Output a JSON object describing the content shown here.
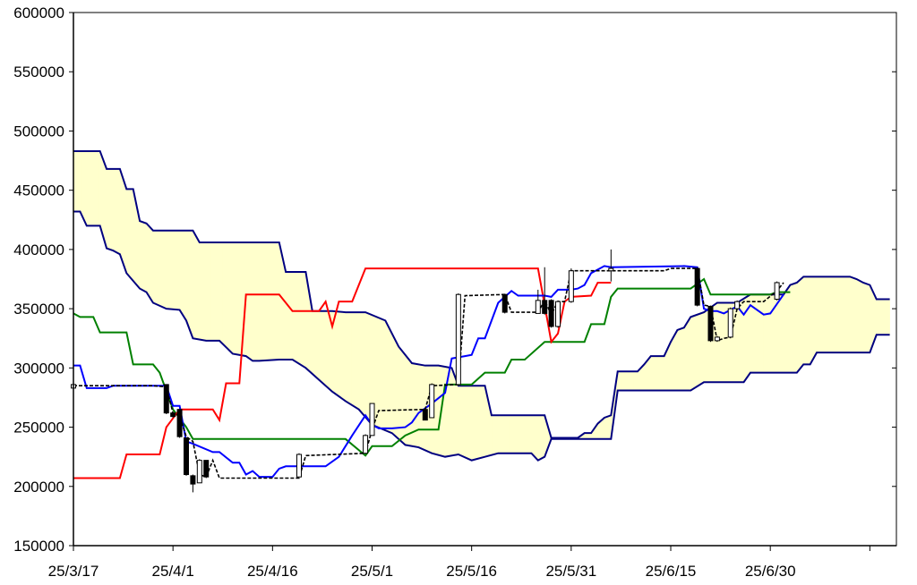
{
  "chart_data": {
    "type": "candlestick-ichimoku",
    "xlabel": "",
    "ylabel": "",
    "grid": false,
    "legend": "none",
    "xlim": [
      "25/3/17",
      "25/7/18"
    ],
    "ylim": [
      150000,
      600000
    ],
    "y_ticks": [
      150000,
      200000,
      250000,
      300000,
      350000,
      400000,
      450000,
      500000,
      550000,
      600000
    ],
    "x_ticks": [
      "25/3/17",
      "25/4/1",
      "25/4/16",
      "25/5/1",
      "25/5/16",
      "25/5/31",
      "25/6/15",
      "25/6/30"
    ],
    "colors": {
      "tenkan": "#0000ff",
      "kijun": "#ff0000",
      "chikou": "#008000",
      "span_lines": "#000080",
      "cloud_bull": "#ffffcc",
      "cloud_bear": "#99dddd",
      "candle": "#000000",
      "close_line": "#000000"
    },
    "span_a": [
      [
        "25/3/17",
        483000
      ],
      [
        "25/3/21",
        483000
      ],
      [
        "25/3/22",
        468000
      ],
      [
        "25/3/24",
        468000
      ],
      [
        "25/3/25",
        451000
      ],
      [
        "25/3/26",
        451000
      ],
      [
        "25/3/27",
        424000
      ],
      [
        "25/3/28",
        422000
      ],
      [
        "25/3/29",
        416000
      ],
      [
        "25/4/4",
        416000
      ],
      [
        "25/4/5",
        406000
      ],
      [
        "25/4/17",
        406000
      ],
      [
        "25/4/18",
        381000
      ],
      [
        "25/4/21",
        381000
      ],
      [
        "25/4/22",
        348000
      ],
      [
        "25/4/25",
        348000
      ],
      [
        "25/4/27",
        347000
      ],
      [
        "25/4/30",
        347000
      ],
      [
        "25/5/3",
        340000
      ],
      [
        "25/5/5",
        318000
      ],
      [
        "25/5/7",
        304000
      ],
      [
        "25/5/9",
        302000
      ],
      [
        "25/5/11",
        302000
      ],
      [
        "25/5/13",
        300000
      ],
      [
        "25/5/14",
        285000
      ],
      [
        "25/5/18",
        285000
      ],
      [
        "25/5/19",
        260000
      ],
      [
        "25/5/23",
        260000
      ],
      [
        "25/5/24",
        260000
      ],
      [
        "25/5/27",
        260000
      ],
      [
        "25/5/28",
        241000
      ],
      [
        "25/6/1",
        241000
      ],
      [
        "25/6/2",
        245000
      ],
      [
        "25/6/3",
        245000
      ],
      [
        "25/6/4",
        253000
      ],
      [
        "25/6/5",
        258000
      ],
      [
        "25/6/6",
        260000
      ],
      [
        "25/6/7",
        297000
      ],
      [
        "25/6/10",
        297000
      ],
      [
        "25/6/11",
        303000
      ],
      [
        "25/6/12",
        310000
      ],
      [
        "25/6/14",
        310000
      ],
      [
        "25/6/15",
        322000
      ],
      [
        "25/6/16",
        332000
      ],
      [
        "25/6/17",
        334000
      ],
      [
        "25/6/18",
        343000
      ],
      [
        "25/6/20",
        347000
      ],
      [
        "25/6/22",
        355000
      ],
      [
        "25/6/24",
        355000
      ],
      [
        "25/6/25",
        355000
      ],
      [
        "25/6/27",
        362000
      ],
      [
        "25/7/2",
        362000
      ],
      [
        "25/7/3",
        370000
      ],
      [
        "25/7/4",
        372000
      ],
      [
        "25/7/5",
        377000
      ],
      [
        "25/7/12",
        377000
      ],
      [
        "25/7/13",
        375000
      ],
      [
        "25/7/14",
        372000
      ],
      [
        "25/7/15",
        370000
      ],
      [
        "25/7/16",
        358000
      ],
      [
        "25/7/18",
        358000
      ]
    ],
    "span_b": [
      [
        "25/3/17",
        432000
      ],
      [
        "25/3/18",
        432000
      ],
      [
        "25/3/19",
        420000
      ],
      [
        "25/3/21",
        420000
      ],
      [
        "25/3/22",
        401000
      ],
      [
        "25/3/23",
        399000
      ],
      [
        "25/3/24",
        396000
      ],
      [
        "25/3/25",
        380000
      ],
      [
        "25/3/27",
        367000
      ],
      [
        "25/3/28",
        364000
      ],
      [
        "25/3/29",
        355000
      ],
      [
        "25/3/31",
        350000
      ],
      [
        "25/4/2",
        349000
      ],
      [
        "25/4/3",
        340000
      ],
      [
        "25/4/4",
        325000
      ],
      [
        "25/4/6",
        323000
      ],
      [
        "25/4/8",
        323000
      ],
      [
        "25/4/10",
        312000
      ],
      [
        "25/4/12",
        310000
      ],
      [
        "25/4/13",
        306000
      ],
      [
        "25/4/14",
        306000
      ],
      [
        "25/4/17",
        307000
      ],
      [
        "25/4/19",
        307000
      ],
      [
        "25/4/21",
        300000
      ],
      [
        "25/4/23",
        290000
      ],
      [
        "25/4/25",
        280000
      ],
      [
        "25/4/27",
        272000
      ],
      [
        "25/4/29",
        265000
      ],
      [
        "25/5/1",
        252000
      ],
      [
        "25/5/4",
        245000
      ],
      [
        "25/5/6",
        235000
      ],
      [
        "25/5/8",
        233000
      ],
      [
        "25/5/10",
        228000
      ],
      [
        "25/5/12",
        225000
      ],
      [
        "25/5/14",
        227000
      ],
      [
        "25/5/16",
        222000
      ],
      [
        "25/5/18",
        225000
      ],
      [
        "25/5/20",
        228000
      ],
      [
        "25/5/24",
        228000
      ],
      [
        "25/5/25",
        228000
      ],
      [
        "25/5/26",
        222000
      ],
      [
        "25/5/27",
        225000
      ],
      [
        "25/5/28",
        240000
      ],
      [
        "25/6/6",
        240000
      ],
      [
        "25/6/7",
        281000
      ],
      [
        "25/6/18",
        281000
      ],
      [
        "25/6/20",
        288000
      ],
      [
        "25/6/26",
        288000
      ],
      [
        "25/6/27",
        296000
      ],
      [
        "25/7/4",
        296000
      ],
      [
        "25/7/5",
        303000
      ],
      [
        "25/7/6",
        303000
      ],
      [
        "25/7/7",
        313000
      ],
      [
        "25/7/15",
        313000
      ],
      [
        "25/7/16",
        328000
      ],
      [
        "25/7/18",
        328000
      ]
    ],
    "tenkan": [
      [
        "25/3/17",
        302000
      ],
      [
        "25/3/18",
        302000
      ],
      [
        "25/3/19",
        283000
      ],
      [
        "25/3/22",
        283000
      ],
      [
        "25/3/23",
        285000
      ],
      [
        "25/3/31",
        285000
      ],
      [
        "25/4/1",
        268000
      ],
      [
        "25/4/2",
        268000
      ],
      [
        "25/4/3",
        238000
      ],
      [
        "25/4/4",
        236000
      ],
      [
        "25/4/7",
        229000
      ],
      [
        "25/4/8",
        229000
      ],
      [
        "25/4/10",
        220000
      ],
      [
        "25/4/11",
        220000
      ],
      [
        "25/4/12",
        210000
      ],
      [
        "25/4/13",
        213000
      ],
      [
        "25/4/14",
        208000
      ],
      [
        "25/4/16",
        208000
      ],
      [
        "25/4/17",
        215000
      ],
      [
        "25/4/18",
        217000
      ],
      [
        "25/4/24",
        217000
      ],
      [
        "25/4/26",
        225000
      ],
      [
        "25/4/28",
        243000
      ],
      [
        "25/4/30",
        260000
      ],
      [
        "25/5/1",
        252000
      ],
      [
        "25/5/2",
        249000
      ],
      [
        "25/5/4",
        249000
      ],
      [
        "25/5/6",
        250000
      ],
      [
        "25/5/7",
        254000
      ],
      [
        "25/5/8",
        262000
      ],
      [
        "25/5/10",
        270000
      ],
      [
        "25/5/12",
        279000
      ],
      [
        "25/5/13",
        308000
      ],
      [
        "25/5/15",
        310000
      ],
      [
        "25/5/16",
        311000
      ],
      [
        "25/5/17",
        325000
      ],
      [
        "25/5/18",
        325000
      ],
      [
        "25/5/19",
        340000
      ],
      [
        "25/5/20",
        355000
      ],
      [
        "25/5/22",
        365000
      ],
      [
        "25/5/23",
        361000
      ],
      [
        "25/5/27",
        361000
      ],
      [
        "25/5/28",
        360000
      ],
      [
        "25/5/29",
        366000
      ],
      [
        "25/5/31",
        366000
      ],
      [
        "25/6/1",
        367000
      ],
      [
        "25/6/2",
        370000
      ],
      [
        "25/6/3",
        380000
      ],
      [
        "25/6/5",
        386000
      ],
      [
        "25/6/6",
        385000
      ],
      [
        "25/6/17",
        386000
      ],
      [
        "25/6/19",
        385000
      ],
      [
        "25/6/20",
        350000
      ],
      [
        "25/6/21",
        348000
      ],
      [
        "25/6/22",
        348000
      ],
      [
        "25/6/23",
        346000
      ],
      [
        "25/6/25",
        352000
      ],
      [
        "25/6/26",
        345000
      ],
      [
        "25/6/27",
        353000
      ],
      [
        "25/6/29",
        345000
      ],
      [
        "25/6/30",
        346000
      ],
      [
        "25/7/1",
        354000
      ],
      [
        "25/7/2",
        362000
      ]
    ],
    "kijun": [
      [
        "25/3/17",
        207000
      ],
      [
        "25/3/24",
        207000
      ],
      [
        "25/3/25",
        227000
      ],
      [
        "25/3/30",
        227000
      ],
      [
        "25/3/31",
        250000
      ],
      [
        "25/4/2",
        265000
      ],
      [
        "25/4/7",
        265000
      ],
      [
        "25/4/8",
        256000
      ],
      [
        "25/4/9",
        287000
      ],
      [
        "25/4/11",
        287000
      ],
      [
        "25/4/12",
        362000
      ],
      [
        "25/4/17",
        362000
      ],
      [
        "25/4/19",
        348000
      ],
      [
        "25/4/23",
        348000
      ],
      [
        "25/4/24",
        356000
      ],
      [
        "25/4/25",
        335000
      ],
      [
        "25/4/26",
        356000
      ],
      [
        "25/4/28",
        356000
      ],
      [
        "25/4/30",
        384000
      ],
      [
        "25/5/26",
        384000
      ],
      [
        "25/5/28",
        322000
      ],
      [
        "25/5/29",
        329000
      ],
      [
        "25/5/30",
        356000
      ],
      [
        "25/5/31",
        360000
      ],
      [
        "25/6/3",
        361000
      ],
      [
        "25/6/4",
        372000
      ],
      [
        "25/6/6",
        372000
      ]
    ],
    "chikou": [
      [
        "25/3/17",
        346000
      ],
      [
        "25/3/18",
        343000
      ],
      [
        "25/3/20",
        343000
      ],
      [
        "25/3/21",
        330000
      ],
      [
        "25/3/25",
        330000
      ],
      [
        "25/3/26",
        303000
      ],
      [
        "25/3/29",
        303000
      ],
      [
        "25/3/30",
        296000
      ],
      [
        "25/4/1",
        265000
      ],
      [
        "25/4/3",
        250000
      ],
      [
        "25/4/4",
        240000
      ],
      [
        "25/4/27",
        240000
      ],
      [
        "25/4/30",
        226000
      ],
      [
        "25/5/1",
        234000
      ],
      [
        "25/5/4",
        234000
      ],
      [
        "25/5/6",
        243000
      ],
      [
        "25/5/8",
        248000
      ],
      [
        "25/5/11",
        248000
      ],
      [
        "25/5/12",
        286000
      ],
      [
        "25/5/16",
        286000
      ],
      [
        "25/5/18",
        296000
      ],
      [
        "25/5/21",
        296000
      ],
      [
        "25/5/22",
        307000
      ],
      [
        "25/5/24",
        307000
      ],
      [
        "25/5/27",
        322000
      ],
      [
        "25/6/2",
        322000
      ],
      [
        "25/6/3",
        337000
      ],
      [
        "25/6/5",
        337000
      ],
      [
        "25/6/6",
        360000
      ],
      [
        "25/6/7",
        367000
      ],
      [
        "25/6/18",
        367000
      ],
      [
        "25/6/20",
        375000
      ],
      [
        "25/6/21",
        362000
      ],
      [
        "25/6/30",
        362000
      ],
      [
        "25/7/1",
        364000
      ],
      [
        "25/7/3",
        364000
      ]
    ],
    "close_line": [
      [
        "25/3/17",
        285000
      ],
      [
        "25/3/29",
        285000
      ],
      [
        "25/3/31",
        284000
      ],
      [
        "25/4/1",
        262000
      ],
      [
        "25/4/2",
        260000
      ],
      [
        "25/4/3",
        242000
      ],
      [
        "25/4/4",
        238000
      ],
      [
        "25/4/5",
        210000
      ],
      [
        "25/4/6",
        208000
      ],
      [
        "25/4/7",
        222000
      ],
      [
        "25/4/8",
        207000
      ],
      [
        "25/4/20",
        207000
      ],
      [
        "25/4/21",
        226000
      ],
      [
        "25/4/30",
        228000
      ],
      [
        "25/5/1",
        248000
      ],
      [
        "25/5/2",
        264000
      ],
      [
        "25/5/9",
        265000
      ],
      [
        "25/5/10",
        285000
      ],
      [
        "25/5/14",
        286000
      ],
      [
        "25/5/15",
        361000
      ],
      [
        "25/5/21",
        362000
      ],
      [
        "25/5/22",
        347000
      ],
      [
        "25/5/26",
        347000
      ],
      [
        "25/5/27",
        357000
      ],
      [
        "25/5/28",
        345000
      ],
      [
        "25/5/29",
        356000
      ],
      [
        "25/5/30",
        356000
      ],
      [
        "25/5/31",
        382000
      ],
      [
        "25/6/14",
        382000
      ],
      [
        "25/6/15",
        384000
      ],
      [
        "25/6/16",
        384000
      ],
      [
        "25/6/17",
        384000
      ],
      [
        "25/6/19",
        384000
      ],
      [
        "25/6/20",
        353000
      ],
      [
        "25/6/21",
        352000
      ],
      [
        "25/6/22",
        323000
      ],
      [
        "25/6/23",
        325000
      ],
      [
        "25/6/24",
        326000
      ],
      [
        "25/6/25",
        350000
      ],
      [
        "25/6/26",
        356000
      ],
      [
        "25/6/29",
        356000
      ],
      [
        "25/7/1",
        365000
      ],
      [
        "25/7/2",
        372000
      ]
    ],
    "candles": [
      {
        "date": "25/3/17",
        "open": 283000,
        "close": 286000,
        "high": 287000,
        "low": 282000
      },
      {
        "date": "25/3/31",
        "open": 286000,
        "close": 262000,
        "high": 286000,
        "low": 261000
      },
      {
        "date": "25/4/1",
        "open": 262000,
        "close": 259000,
        "high": 262000,
        "low": 258000
      },
      {
        "date": "25/4/2",
        "open": 265000,
        "close": 242000,
        "high": 265000,
        "low": 241000
      },
      {
        "date": "25/4/3",
        "open": 241000,
        "close": 210000,
        "high": 241000,
        "low": 209000
      },
      {
        "date": "25/4/4",
        "open": 209000,
        "close": 202000,
        "high": 210000,
        "low": 195000
      },
      {
        "date": "25/4/5",
        "open": 203000,
        "close": 222000,
        "high": 223000,
        "low": 203000
      },
      {
        "date": "25/4/6",
        "open": 222000,
        "close": 208000,
        "high": 222000,
        "low": 207000
      },
      {
        "date": "25/4/20",
        "open": 208000,
        "close": 227000,
        "high": 228000,
        "low": 208000
      },
      {
        "date": "25/4/30",
        "open": 228000,
        "close": 243000,
        "high": 244000,
        "low": 228000
      },
      {
        "date": "25/5/1",
        "open": 243000,
        "close": 270000,
        "high": 270000,
        "low": 243000
      },
      {
        "date": "25/5/9",
        "open": 265000,
        "close": 256000,
        "high": 266000,
        "low": 256000
      },
      {
        "date": "25/5/10",
        "open": 258000,
        "close": 286000,
        "high": 287000,
        "low": 258000
      },
      {
        "date": "25/5/14",
        "open": 286000,
        "close": 362000,
        "high": 363000,
        "low": 286000
      },
      {
        "date": "25/5/21",
        "open": 362000,
        "close": 347000,
        "high": 362000,
        "low": 346000
      },
      {
        "date": "25/5/26",
        "open": 346000,
        "close": 357000,
        "high": 366000,
        "low": 346000
      },
      {
        "date": "25/5/27",
        "open": 357000,
        "close": 346000,
        "high": 385000,
        "low": 345000
      },
      {
        "date": "25/5/28",
        "open": 357000,
        "close": 335000,
        "high": 358000,
        "low": 334000
      },
      {
        "date": "25/5/29",
        "open": 335000,
        "close": 356000,
        "high": 357000,
        "low": 334000
      },
      {
        "date": "25/5/31",
        "open": 356000,
        "close": 382000,
        "high": 384000,
        "low": 355000
      },
      {
        "date": "25/6/6",
        "open": 382000,
        "close": 384000,
        "high": 400000,
        "low": 373000
      },
      {
        "date": "25/6/19",
        "open": 384000,
        "close": 353000,
        "high": 385000,
        "low": 352000
      },
      {
        "date": "25/6/21",
        "open": 352000,
        "close": 323000,
        "high": 352000,
        "low": 322000
      },
      {
        "date": "25/6/22",
        "open": 323000,
        "close": 326000,
        "high": 327000,
        "low": 322000
      },
      {
        "date": "25/6/24",
        "open": 326000,
        "close": 350000,
        "high": 351000,
        "low": 325000
      },
      {
        "date": "25/6/25",
        "open": 350000,
        "close": 356000,
        "high": 357000,
        "low": 349000
      },
      {
        "date": "25/7/1",
        "open": 358000,
        "close": 372000,
        "high": 373000,
        "low": 357000
      }
    ]
  }
}
